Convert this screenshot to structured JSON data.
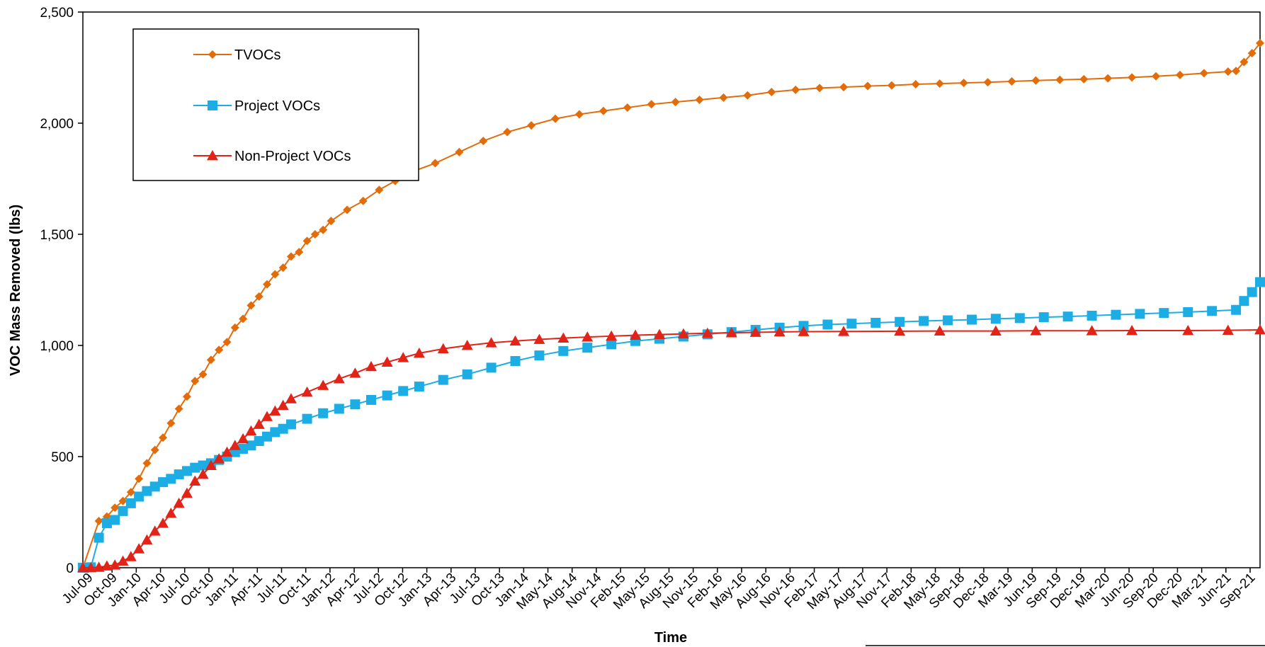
{
  "chart_data": {
    "type": "line",
    "xlabel": "Time",
    "ylabel": "VOC Mass Removed (lbs)",
    "ylim": [
      0,
      2500
    ],
    "yticks": [
      0,
      500,
      1000,
      1500,
      2000,
      2500
    ],
    "ytick_labels": [
      "0",
      "500",
      "1,000",
      "1,500",
      "2,000",
      "2,500"
    ],
    "xlim": [
      "2009-07",
      "2021-10"
    ],
    "xtick_labels": [
      "Jul-09",
      "Oct-09",
      "Jan-10",
      "Apr-10",
      "Jul-10",
      "Oct-10",
      "Jan-11",
      "Apr-11",
      "Jul-11",
      "Oct-11",
      "Jan-12",
      "Apr-12",
      "Jul-12",
      "Oct-12",
      "Jan-13",
      "Apr-13",
      "Jul-13",
      "Oct-13",
      "Jan-14",
      "May-14",
      "Aug-14",
      "Nov-14",
      "Feb-15",
      "May-15",
      "Aug-15",
      "Nov-15",
      "Feb-16",
      "May-16",
      "Aug-16",
      "Nov-16",
      "Feb-17",
      "May-17",
      "Aug-17",
      "Nov-17",
      "Feb-18",
      "May-18",
      "Sep-18",
      "Dec-18",
      "Mar-19",
      "Jun-19",
      "Sep-19",
      "Dec-19",
      "Mar-20",
      "Jun-20",
      "Sep-20",
      "Dec-20",
      "Mar-21",
      "Jun-21",
      "Sep-21"
    ],
    "grid": false,
    "legend_position": "top-left",
    "series": [
      {
        "name": "TVOCs",
        "color": "#E36C0A",
        "marker": "diamond",
        "points": [
          [
            "2009-07",
            0
          ],
          [
            "2009-09",
            210
          ],
          [
            "2009-10",
            230
          ],
          [
            "2009-11",
            270
          ],
          [
            "2009-12",
            300
          ],
          [
            "2010-01",
            340
          ],
          [
            "2010-02",
            400
          ],
          [
            "2010-03",
            470
          ],
          [
            "2010-04",
            530
          ],
          [
            "2010-05",
            585
          ],
          [
            "2010-06",
            650
          ],
          [
            "2010-07",
            715
          ],
          [
            "2010-08",
            770
          ],
          [
            "2010-09",
            840
          ],
          [
            "2010-10",
            870
          ],
          [
            "2010-11",
            935
          ],
          [
            "2010-12",
            980
          ],
          [
            "2011-01",
            1015
          ],
          [
            "2011-02",
            1080
          ],
          [
            "2011-03",
            1120
          ],
          [
            "2011-04",
            1180
          ],
          [
            "2011-05",
            1220
          ],
          [
            "2011-06",
            1275
          ],
          [
            "2011-07",
            1320
          ],
          [
            "2011-08",
            1350
          ],
          [
            "2011-09",
            1400
          ],
          [
            "2011-10",
            1420
          ],
          [
            "2011-11",
            1470
          ],
          [
            "2011-12",
            1500
          ],
          [
            "2012-01",
            1520
          ],
          [
            "2012-02",
            1560
          ],
          [
            "2012-04",
            1610
          ],
          [
            "2012-06",
            1650
          ],
          [
            "2012-08",
            1700
          ],
          [
            "2012-10",
            1740
          ],
          [
            "2012-12",
            1780
          ],
          [
            "2013-03",
            1820
          ],
          [
            "2013-06",
            1870
          ],
          [
            "2013-09",
            1920
          ],
          [
            "2013-12",
            1960
          ],
          [
            "2014-03",
            1990
          ],
          [
            "2014-06",
            2020
          ],
          [
            "2014-09",
            2040
          ],
          [
            "2014-12",
            2055
          ],
          [
            "2015-03",
            2070
          ],
          [
            "2015-06",
            2085
          ],
          [
            "2015-09",
            2095
          ],
          [
            "2015-12",
            2105
          ],
          [
            "2016-03",
            2115
          ],
          [
            "2016-06",
            2125
          ],
          [
            "2016-09",
            2140
          ],
          [
            "2016-12",
            2150
          ],
          [
            "2017-03",
            2158
          ],
          [
            "2017-06",
            2162
          ],
          [
            "2017-09",
            2167
          ],
          [
            "2017-12",
            2170
          ],
          [
            "2018-03",
            2175
          ],
          [
            "2018-06",
            2178
          ],
          [
            "2018-09",
            2181
          ],
          [
            "2018-12",
            2184
          ],
          [
            "2019-03",
            2188
          ],
          [
            "2019-06",
            2192
          ],
          [
            "2019-09",
            2195
          ],
          [
            "2019-12",
            2198
          ],
          [
            "2020-03",
            2202
          ],
          [
            "2020-06",
            2206
          ],
          [
            "2020-09",
            2211
          ],
          [
            "2020-12",
            2217
          ],
          [
            "2021-03",
            2225
          ],
          [
            "2021-06",
            2232
          ],
          [
            "2021-07",
            2235
          ],
          [
            "2021-08",
            2275
          ],
          [
            "2021-09",
            2315
          ],
          [
            "2021-10",
            2360
          ]
        ]
      },
      {
        "name": "Project VOCs",
        "color": "#1CADE4",
        "marker": "square",
        "points": [
          [
            "2009-07",
            0
          ],
          [
            "2009-08",
            2
          ],
          [
            "2009-09",
            135
          ],
          [
            "2009-10",
            200
          ],
          [
            "2009-11",
            215
          ],
          [
            "2009-12",
            255
          ],
          [
            "2010-01",
            290
          ],
          [
            "2010-02",
            320
          ],
          [
            "2010-03",
            345
          ],
          [
            "2010-04",
            365
          ],
          [
            "2010-05",
            385
          ],
          [
            "2010-06",
            400
          ],
          [
            "2010-07",
            420
          ],
          [
            "2010-08",
            435
          ],
          [
            "2010-09",
            450
          ],
          [
            "2010-10",
            460
          ],
          [
            "2010-11",
            470
          ],
          [
            "2010-12",
            485
          ],
          [
            "2011-01",
            500
          ],
          [
            "2011-02",
            520
          ],
          [
            "2011-03",
            535
          ],
          [
            "2011-04",
            550
          ],
          [
            "2011-05",
            570
          ],
          [
            "2011-06",
            590
          ],
          [
            "2011-07",
            610
          ],
          [
            "2011-08",
            625
          ],
          [
            "2011-09",
            645
          ],
          [
            "2011-11",
            670
          ],
          [
            "2012-01",
            695
          ],
          [
            "2012-03",
            715
          ],
          [
            "2012-05",
            735
          ],
          [
            "2012-07",
            755
          ],
          [
            "2012-09",
            775
          ],
          [
            "2012-11",
            795
          ],
          [
            "2013-01",
            815
          ],
          [
            "2013-04",
            845
          ],
          [
            "2013-07",
            870
          ],
          [
            "2013-10",
            900
          ],
          [
            "2014-01",
            930
          ],
          [
            "2014-04",
            955
          ],
          [
            "2014-07",
            975
          ],
          [
            "2014-10",
            990
          ],
          [
            "2015-01",
            1005
          ],
          [
            "2015-04",
            1020
          ],
          [
            "2015-07",
            1030
          ],
          [
            "2015-10",
            1040
          ],
          [
            "2016-01",
            1050
          ],
          [
            "2016-04",
            1060
          ],
          [
            "2016-07",
            1070
          ],
          [
            "2016-10",
            1080
          ],
          [
            "2017-01",
            1088
          ],
          [
            "2017-04",
            1094
          ],
          [
            "2017-07",
            1098
          ],
          [
            "2017-10",
            1102
          ],
          [
            "2018-01",
            1106
          ],
          [
            "2018-04",
            1110
          ],
          [
            "2018-07",
            1113
          ],
          [
            "2018-10",
            1116
          ],
          [
            "2019-01",
            1120
          ],
          [
            "2019-04",
            1123
          ],
          [
            "2019-07",
            1127
          ],
          [
            "2019-10",
            1130
          ],
          [
            "2020-01",
            1134
          ],
          [
            "2020-04",
            1138
          ],
          [
            "2020-07",
            1142
          ],
          [
            "2020-10",
            1146
          ],
          [
            "2021-01",
            1150
          ],
          [
            "2021-04",
            1155
          ],
          [
            "2021-07",
            1160
          ],
          [
            "2021-08",
            1200
          ],
          [
            "2021-09",
            1240
          ],
          [
            "2021-10",
            1285
          ]
        ]
      },
      {
        "name": "Non-Project VOCs",
        "color": "#E12417",
        "marker": "triangle",
        "points": [
          [
            "2009-07",
            0
          ],
          [
            "2009-08",
            0
          ],
          [
            "2009-09",
            2
          ],
          [
            "2009-10",
            8
          ],
          [
            "2009-11",
            12
          ],
          [
            "2009-12",
            30
          ],
          [
            "2010-01",
            50
          ],
          [
            "2010-02",
            85
          ],
          [
            "2010-03",
            125
          ],
          [
            "2010-04",
            165
          ],
          [
            "2010-05",
            200
          ],
          [
            "2010-06",
            245
          ],
          [
            "2010-07",
            290
          ],
          [
            "2010-08",
            335
          ],
          [
            "2010-09",
            390
          ],
          [
            "2010-10",
            420
          ],
          [
            "2010-11",
            460
          ],
          [
            "2010-12",
            490
          ],
          [
            "2011-01",
            520
          ],
          [
            "2011-02",
            550
          ],
          [
            "2011-03",
            580
          ],
          [
            "2011-04",
            615
          ],
          [
            "2011-05",
            645
          ],
          [
            "2011-06",
            680
          ],
          [
            "2011-07",
            705
          ],
          [
            "2011-08",
            730
          ],
          [
            "2011-09",
            760
          ],
          [
            "2011-11",
            790
          ],
          [
            "2012-01",
            820
          ],
          [
            "2012-03",
            850
          ],
          [
            "2012-05",
            875
          ],
          [
            "2012-07",
            905
          ],
          [
            "2012-09",
            925
          ],
          [
            "2012-11",
            945
          ],
          [
            "2013-01",
            965
          ],
          [
            "2013-04",
            985
          ],
          [
            "2013-07",
            1000
          ],
          [
            "2013-10",
            1012
          ],
          [
            "2014-01",
            1020
          ],
          [
            "2014-04",
            1027
          ],
          [
            "2014-07",
            1033
          ],
          [
            "2014-10",
            1038
          ],
          [
            "2015-01",
            1042
          ],
          [
            "2015-04",
            1046
          ],
          [
            "2015-07",
            1049
          ],
          [
            "2015-10",
            1052
          ],
          [
            "2016-01",
            1055
          ],
          [
            "2016-04",
            1057
          ],
          [
            "2016-07",
            1059
          ],
          [
            "2016-10",
            1061
          ],
          [
            "2017-01",
            1062
          ],
          [
            "2017-06",
            1063
          ],
          [
            "2018-01",
            1064
          ],
          [
            "2018-06",
            1065
          ],
          [
            "2019-01",
            1065
          ],
          [
            "2019-06",
            1066
          ],
          [
            "2020-01",
            1066
          ],
          [
            "2020-06",
            1067
          ],
          [
            "2021-01",
            1067
          ],
          [
            "2021-06",
            1068
          ],
          [
            "2021-10",
            1070
          ]
        ]
      }
    ]
  }
}
